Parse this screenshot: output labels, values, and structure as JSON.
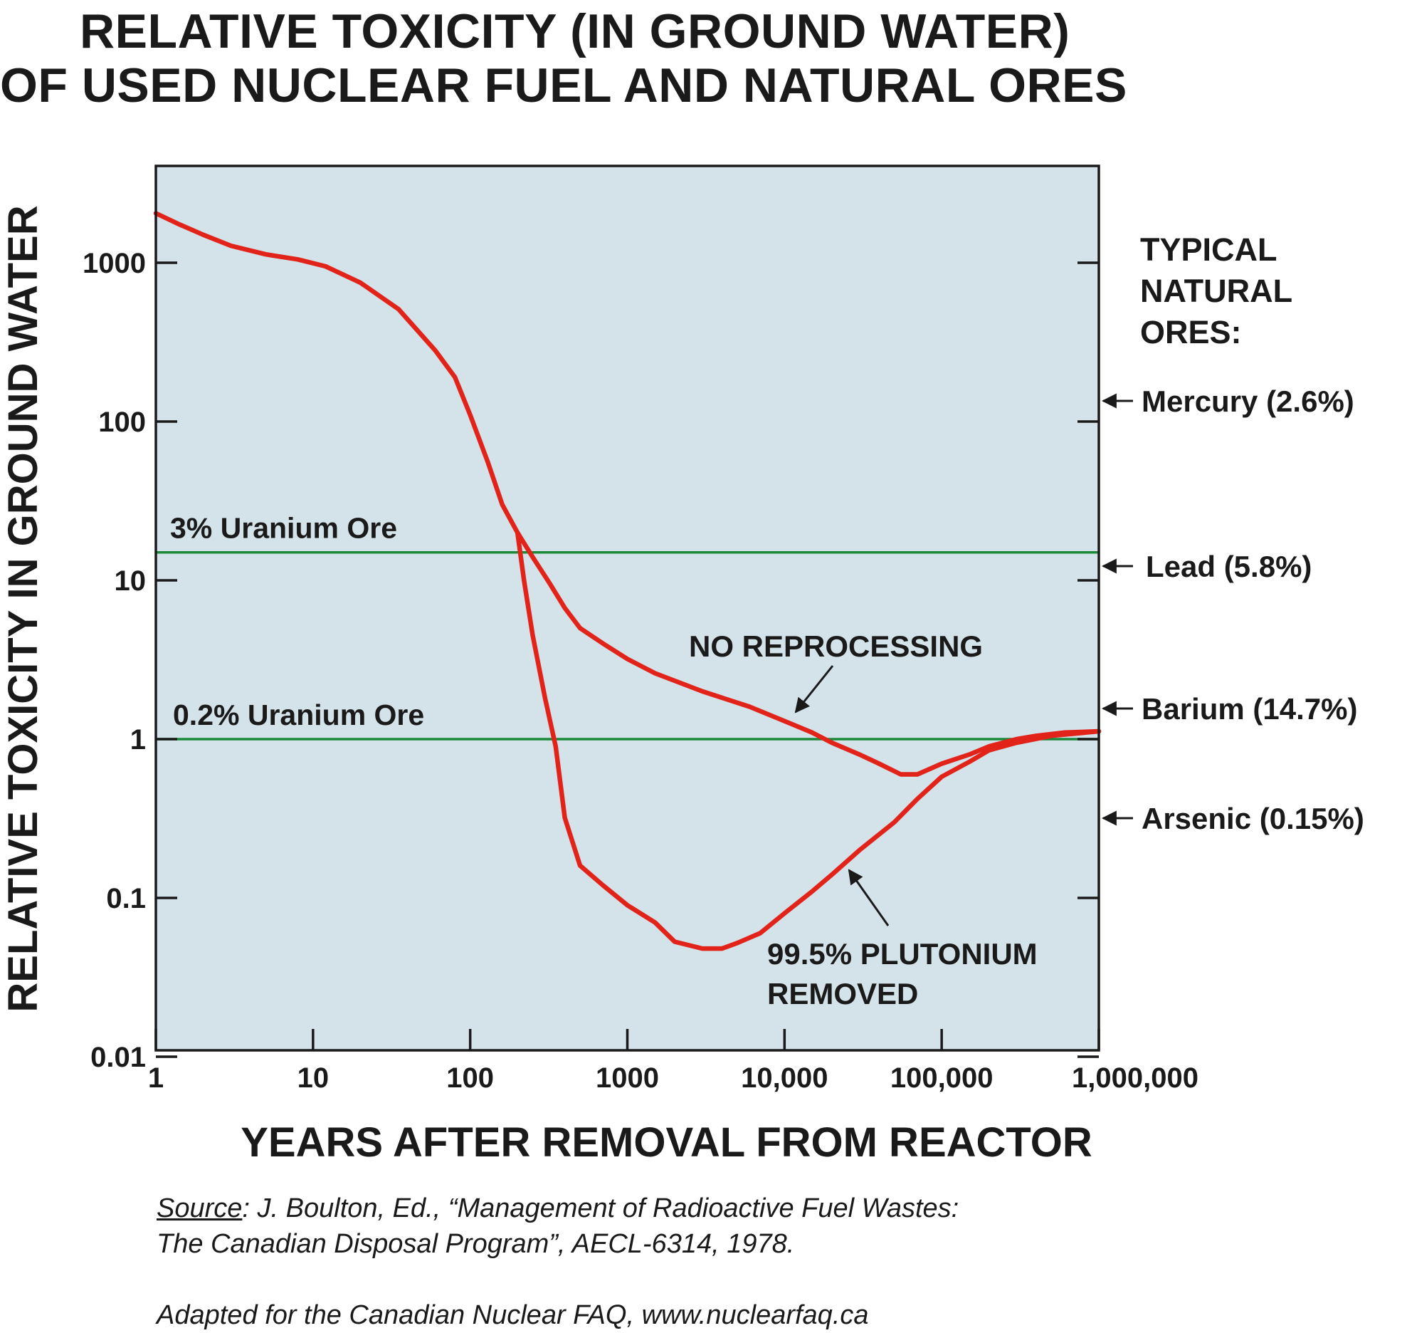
{
  "chart_data": {
    "type": "line",
    "title": [
      "RELATIVE TOXICITY (IN GROUND WATER)",
      "OF USED NUCLEAR FUEL AND NATURAL ORES"
    ],
    "xlabel": "YEARS AFTER REMOVAL FROM REACTOR",
    "ylabel": "RELATIVE TOXICITY IN GROUND WATER",
    "x_scale": "log",
    "y_scale": "log",
    "xlim": [
      1,
      1000000
    ],
    "ylim": [
      0.01,
      5000
    ],
    "x_ticks": [
      {
        "value": 1,
        "label": "1"
      },
      {
        "value": 10,
        "label": "10"
      },
      {
        "value": 100,
        "label": "100"
      },
      {
        "value": 1000,
        "label": "1000"
      },
      {
        "value": 10000,
        "label": "10,000"
      },
      {
        "value": 100000,
        "label": "100,000"
      },
      {
        "value": 1000000,
        "label": "1,000,000"
      }
    ],
    "y_ticks": [
      {
        "value": 0.01,
        "label": "0.01"
      },
      {
        "value": 0.1,
        "label": "0.1"
      },
      {
        "value": 1,
        "label": "1"
      },
      {
        "value": 10,
        "label": "10"
      },
      {
        "value": 100,
        "label": "100"
      },
      {
        "value": 1000,
        "label": "1000"
      }
    ],
    "grid": false,
    "series": [
      {
        "name": "NO REPROCESSING",
        "color": "#e2231a",
        "points": [
          [
            1,
            2050
          ],
          [
            1.4,
            1750
          ],
          [
            2,
            1500
          ],
          [
            3,
            1280
          ],
          [
            5,
            1130
          ],
          [
            8,
            1050
          ],
          [
            12,
            950
          ],
          [
            20,
            750
          ],
          [
            35,
            510
          ],
          [
            60,
            280
          ],
          [
            80,
            190
          ],
          [
            100,
            110
          ],
          [
            130,
            55
          ],
          [
            160,
            30
          ],
          [
            200,
            20
          ],
          [
            250,
            14
          ],
          [
            320,
            9.6
          ],
          [
            400,
            6.7
          ],
          [
            500,
            5.0
          ],
          [
            700,
            4.0
          ],
          [
            1000,
            3.2
          ],
          [
            1500,
            2.6
          ],
          [
            3000,
            2.0
          ],
          [
            6000,
            1.6
          ],
          [
            10000,
            1.3
          ],
          [
            15000,
            1.1
          ],
          [
            20000,
            0.95
          ],
          [
            30000,
            0.8
          ],
          [
            40000,
            0.7
          ],
          [
            55000,
            0.6
          ],
          [
            70000,
            0.6
          ],
          [
            100000,
            0.7
          ],
          [
            150000,
            0.8
          ],
          [
            200000,
            0.9
          ],
          [
            300000,
            1.0
          ],
          [
            400000,
            1.05
          ],
          [
            600000,
            1.1
          ],
          [
            1000000,
            1.12
          ]
        ]
      },
      {
        "name": "99.5% PLUTONIUM REMOVED",
        "color": "#e2231a",
        "points": [
          [
            200,
            20
          ],
          [
            220,
            10
          ],
          [
            250,
            4.5
          ],
          [
            300,
            1.8
          ],
          [
            350,
            0.9
          ],
          [
            400,
            0.32
          ],
          [
            500,
            0.16
          ],
          [
            700,
            0.12
          ],
          [
            1000,
            0.09
          ],
          [
            1500,
            0.07
          ],
          [
            2000,
            0.053
          ],
          [
            3000,
            0.048
          ],
          [
            4000,
            0.048
          ],
          [
            5000,
            0.052
          ],
          [
            7000,
            0.06
          ],
          [
            10000,
            0.08
          ],
          [
            15000,
            0.11
          ],
          [
            20000,
            0.14
          ],
          [
            30000,
            0.2
          ],
          [
            50000,
            0.3
          ],
          [
            70000,
            0.42
          ],
          [
            100000,
            0.58
          ],
          [
            150000,
            0.72
          ],
          [
            200000,
            0.85
          ],
          [
            300000,
            0.95
          ],
          [
            500000,
            1.05
          ],
          [
            1000000,
            1.12
          ]
        ]
      }
    ],
    "reference_lines": [
      {
        "label": "3% Uranium Ore",
        "value": 15,
        "color": "#1a8a3a"
      },
      {
        "label": "0.2% Uranium Ore",
        "value": 1.0,
        "color": "#1a8a3a"
      }
    ],
    "annotations": [
      {
        "text": "NO REPROCESSING",
        "at": [
          10000,
          1.3
        ]
      },
      {
        "text": [
          "99.5% PLUTONIUM",
          "REMOVED"
        ],
        "at": [
          30000,
          0.2
        ]
      }
    ],
    "natural_ores": {
      "heading": [
        "TYPICAL",
        "NATURAL",
        "ORES:"
      ],
      "items": [
        {
          "label": "Mercury (2.6%)",
          "value": 135
        },
        {
          "label": "Lead (5.8%)",
          "value": 12
        },
        {
          "label": "Barium (14.7%)",
          "value": 1.45
        },
        {
          "label": "Arsenic (0.15%)",
          "value": 0.32
        }
      ]
    },
    "colors": {
      "plot_bg": "#d4e3ea",
      "axis": "#1a1a1a"
    }
  },
  "source": {
    "prefix": "Source",
    "line1": ": J. Boulton, Ed., “Management of Radioactive Fuel Wastes:",
    "line2": "The Canadian Disposal Program”, AECL-6314, 1978.",
    "credit": "Adapted for the Canadian Nuclear FAQ, www.nuclearfaq.ca"
  }
}
